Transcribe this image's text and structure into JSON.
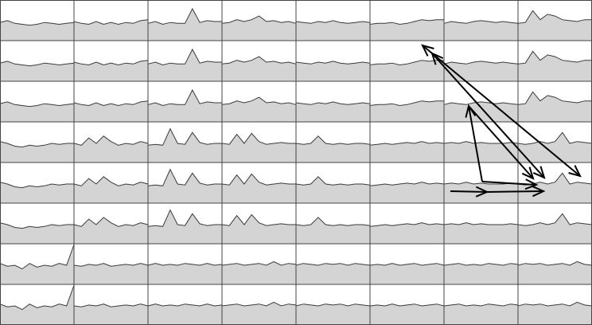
{
  "colors": {
    "background": "#ffffff",
    "fill": "#d4d4d4",
    "trace": "#3a3a3a",
    "grid": "#444444",
    "arrow": "#000000"
  },
  "grid": {
    "rows": 8,
    "cols": 8
  },
  "traces": [
    [
      [
        0.15,
        0.25,
        0.1,
        0.05,
        0.0,
        0.05,
        0.15,
        0.1,
        0.05,
        0.1,
        0.15
      ],
      [
        0.2,
        0.1,
        0.05,
        0.2,
        0.05,
        0.15,
        0.05,
        0.15,
        0.1,
        0.25,
        0.3
      ],
      [
        0.1,
        0.2,
        0.05,
        0.15,
        0.1,
        0.1,
        0.9,
        0.15,
        0.25,
        0.2,
        0.2
      ],
      [
        0.1,
        0.15,
        0.3,
        0.2,
        0.3,
        0.5,
        0.2,
        0.25,
        0.15,
        0.2,
        0.1
      ],
      [
        0.2,
        0.15,
        0.1,
        0.2,
        0.15,
        0.25,
        0.15,
        0.1,
        0.15,
        0.2,
        0.15
      ],
      [
        0.05,
        0.1,
        0.1,
        0.15,
        0.05,
        0.1,
        0.2,
        0.3,
        0.25,
        0.3,
        0.3
      ],
      [
        0.1,
        0.2,
        0.15,
        0.1,
        0.2,
        0.25,
        0.2,
        0.15,
        0.2,
        0.15,
        0.1
      ],
      [
        0.1,
        0.15,
        0.8,
        0.3,
        0.6,
        0.5,
        0.3,
        0.25,
        0.2,
        0.3,
        0.3
      ]
    ],
    [
      [
        0.15,
        0.25,
        0.1,
        0.05,
        0.0,
        0.05,
        0.15,
        0.1,
        0.05,
        0.1,
        0.15
      ],
      [
        0.2,
        0.1,
        0.05,
        0.2,
        0.05,
        0.15,
        0.05,
        0.15,
        0.1,
        0.25,
        0.3
      ],
      [
        0.1,
        0.2,
        0.05,
        0.15,
        0.1,
        0.1,
        0.9,
        0.15,
        0.25,
        0.2,
        0.2
      ],
      [
        0.1,
        0.15,
        0.3,
        0.2,
        0.3,
        0.5,
        0.2,
        0.25,
        0.15,
        0.2,
        0.1
      ],
      [
        0.2,
        0.15,
        0.1,
        0.2,
        0.15,
        0.25,
        0.15,
        0.1,
        0.15,
        0.2,
        0.15
      ],
      [
        0.05,
        0.1,
        0.1,
        0.15,
        0.05,
        0.1,
        0.2,
        0.3,
        0.25,
        0.3,
        0.3
      ],
      [
        0.1,
        0.2,
        0.15,
        0.1,
        0.2,
        0.25,
        0.2,
        0.15,
        0.2,
        0.15,
        0.1
      ],
      [
        0.1,
        0.15,
        0.8,
        0.3,
        0.6,
        0.5,
        0.3,
        0.25,
        0.2,
        0.3,
        0.3
      ]
    ],
    [
      [
        0.15,
        0.25,
        0.1,
        0.05,
        0.0,
        0.05,
        0.15,
        0.1,
        0.05,
        0.1,
        0.15
      ],
      [
        0.2,
        0.1,
        0.05,
        0.2,
        0.05,
        0.15,
        0.05,
        0.15,
        0.1,
        0.25,
        0.3
      ],
      [
        0.1,
        0.2,
        0.05,
        0.15,
        0.1,
        0.1,
        0.9,
        0.15,
        0.25,
        0.2,
        0.2
      ],
      [
        0.1,
        0.15,
        0.3,
        0.2,
        0.3,
        0.5,
        0.2,
        0.25,
        0.15,
        0.2,
        0.1
      ],
      [
        0.2,
        0.15,
        0.1,
        0.2,
        0.15,
        0.25,
        0.15,
        0.1,
        0.15,
        0.2,
        0.15
      ],
      [
        0.05,
        0.1,
        0.1,
        0.15,
        0.05,
        0.1,
        0.2,
        0.3,
        0.25,
        0.3,
        0.3
      ],
      [
        0.1,
        0.2,
        0.15,
        0.1,
        0.2,
        0.25,
        0.2,
        0.15,
        0.2,
        0.15,
        0.1
      ],
      [
        0.1,
        0.15,
        0.8,
        0.3,
        0.6,
        0.5,
        0.3,
        0.25,
        0.2,
        0.3,
        0.3
      ]
    ],
    [
      [
        0.3,
        0.2,
        0.05,
        0.0,
        0.1,
        0.05,
        0.1,
        0.2,
        0.15,
        0.2,
        0.2
      ],
      [
        0.2,
        0.1,
        0.5,
        0.2,
        0.6,
        0.3,
        0.1,
        0.2,
        0.15,
        0.3,
        0.2
      ],
      [
        0.1,
        0.15,
        0.1,
        1.0,
        0.2,
        0.15,
        0.8,
        0.25,
        0.15,
        0.2,
        0.2
      ],
      [
        0.2,
        0.15,
        0.7,
        0.2,
        0.75,
        0.3,
        0.15,
        0.2,
        0.25,
        0.2,
        0.2
      ],
      [
        0.2,
        0.15,
        0.2,
        0.6,
        0.2,
        0.15,
        0.2,
        0.15,
        0.2,
        0.2,
        0.15
      ],
      [
        0.1,
        0.15,
        0.2,
        0.15,
        0.2,
        0.25,
        0.2,
        0.3,
        0.2,
        0.25,
        0.2
      ],
      [
        0.2,
        0.25,
        0.2,
        0.3,
        0.2,
        0.25,
        0.2,
        0.2,
        0.2,
        0.25,
        0.2
      ],
      [
        0.2,
        0.15,
        0.2,
        0.3,
        0.2,
        0.3,
        0.8,
        0.2,
        0.3,
        0.25,
        0.2
      ]
    ],
    [
      [
        0.3,
        0.2,
        0.05,
        0.0,
        0.1,
        0.05,
        0.1,
        0.2,
        0.15,
        0.2,
        0.2
      ],
      [
        0.2,
        0.1,
        0.5,
        0.2,
        0.6,
        0.3,
        0.1,
        0.2,
        0.15,
        0.3,
        0.2
      ],
      [
        0.1,
        0.15,
        0.1,
        1.0,
        0.2,
        0.15,
        0.8,
        0.25,
        0.15,
        0.2,
        0.2
      ],
      [
        0.2,
        0.15,
        0.7,
        0.2,
        0.75,
        0.3,
        0.15,
        0.2,
        0.25,
        0.2,
        0.2
      ],
      [
        0.2,
        0.15,
        0.2,
        0.6,
        0.2,
        0.15,
        0.2,
        0.15,
        0.2,
        0.2,
        0.15
      ],
      [
        0.1,
        0.15,
        0.2,
        0.15,
        0.2,
        0.25,
        0.2,
        0.3,
        0.2,
        0.25,
        0.2
      ],
      [
        0.2,
        0.25,
        0.2,
        0.3,
        0.2,
        0.25,
        0.2,
        0.2,
        0.2,
        0.25,
        0.2
      ],
      [
        0.2,
        0.15,
        0.2,
        0.3,
        0.2,
        0.3,
        0.8,
        0.2,
        0.3,
        0.25,
        0.2
      ]
    ],
    [
      [
        0.3,
        0.2,
        0.05,
        0.0,
        0.1,
        0.05,
        0.1,
        0.2,
        0.15,
        0.2,
        0.2
      ],
      [
        0.2,
        0.1,
        0.5,
        0.2,
        0.6,
        0.3,
        0.1,
        0.2,
        0.15,
        0.3,
        0.2
      ],
      [
        0.1,
        0.15,
        0.1,
        1.0,
        0.2,
        0.15,
        0.8,
        0.25,
        0.15,
        0.2,
        0.2
      ],
      [
        0.2,
        0.15,
        0.7,
        0.2,
        0.75,
        0.3,
        0.15,
        0.2,
        0.25,
        0.2,
        0.2
      ],
      [
        0.2,
        0.15,
        0.2,
        0.6,
        0.2,
        0.15,
        0.2,
        0.15,
        0.2,
        0.2,
        0.15
      ],
      [
        0.1,
        0.15,
        0.2,
        0.15,
        0.2,
        0.25,
        0.2,
        0.3,
        0.2,
        0.25,
        0.2
      ],
      [
        0.2,
        0.25,
        0.2,
        0.3,
        0.2,
        0.25,
        0.2,
        0.2,
        0.2,
        0.25,
        0.2
      ],
      [
        0.2,
        0.15,
        0.2,
        0.3,
        0.2,
        0.3,
        0.8,
        0.2,
        0.3,
        0.25,
        0.2
      ]
    ],
    [
      [
        0.3,
        0.15,
        0.2,
        0.0,
        0.3,
        0.1,
        0.2,
        0.15,
        0.3,
        0.2,
        1.4
      ],
      [
        0.2,
        0.15,
        0.25,
        0.2,
        0.3,
        0.15,
        0.2,
        0.25,
        0.2,
        0.3,
        0.2
      ],
      [
        0.2,
        0.3,
        0.2,
        0.25,
        0.2,
        0.3,
        0.25,
        0.2,
        0.3,
        0.2,
        0.25
      ],
      [
        0.2,
        0.25,
        0.3,
        0.2,
        0.25,
        0.3,
        0.2,
        0.4,
        0.2,
        0.3,
        0.25
      ],
      [
        0.2,
        0.3,
        0.25,
        0.2,
        0.3,
        0.25,
        0.3,
        0.2,
        0.3,
        0.25,
        0.2
      ],
      [
        0.2,
        0.25,
        0.2,
        0.3,
        0.2,
        0.25,
        0.3,
        0.2,
        0.25,
        0.3,
        0.2
      ],
      [
        0.2,
        0.25,
        0.3,
        0.2,
        0.25,
        0.2,
        0.3,
        0.25,
        0.2,
        0.3,
        0.25
      ],
      [
        0.2,
        0.3,
        0.25,
        0.3,
        0.2,
        0.25,
        0.3,
        0.2,
        0.4,
        0.25,
        0.2
      ]
    ],
    [
      [
        0.3,
        0.15,
        0.2,
        0.0,
        0.3,
        0.1,
        0.2,
        0.15,
        0.3,
        0.2,
        1.4
      ],
      [
        0.2,
        0.15,
        0.25,
        0.2,
        0.3,
        0.15,
        0.2,
        0.25,
        0.2,
        0.3,
        0.2
      ],
      [
        0.2,
        0.3,
        0.2,
        0.25,
        0.2,
        0.3,
        0.25,
        0.2,
        0.3,
        0.2,
        0.25
      ],
      [
        0.2,
        0.25,
        0.3,
        0.2,
        0.25,
        0.3,
        0.2,
        0.4,
        0.2,
        0.3,
        0.25
      ],
      [
        0.2,
        0.3,
        0.25,
        0.2,
        0.3,
        0.25,
        0.3,
        0.2,
        0.3,
        0.25,
        0.2
      ],
      [
        0.2,
        0.25,
        0.2,
        0.3,
        0.2,
        0.25,
        0.3,
        0.2,
        0.25,
        0.3,
        0.2
      ],
      [
        0.2,
        0.25,
        0.3,
        0.2,
        0.25,
        0.2,
        0.3,
        0.25,
        0.2,
        0.3,
        0.25
      ],
      [
        0.2,
        0.3,
        0.25,
        0.3,
        0.2,
        0.25,
        0.3,
        0.2,
        0.4,
        0.25,
        0.2
      ]
    ]
  ]
}
